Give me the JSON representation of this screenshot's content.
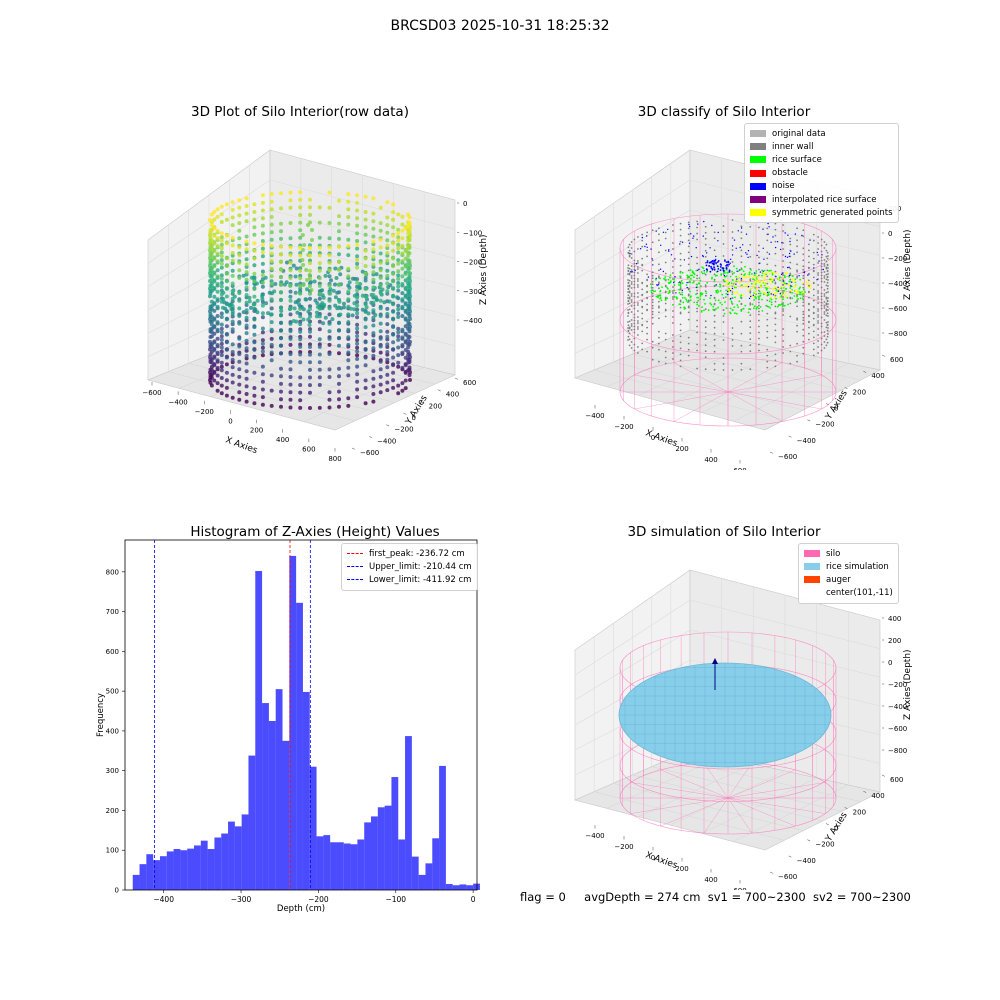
{
  "suptitle": "BRCSD03 2025-10-31 18:25:32",
  "panels": {
    "raw": {
      "title": "3D Plot of Silo Interior(row data)",
      "xlabel": "X Axies",
      "ylabel": "Y Axies",
      "zlabel": "Z Axies (Depth)",
      "xticks": [
        "−600",
        "−400",
        "−200",
        "0",
        "200",
        "400",
        "600",
        "800"
      ],
      "yticks": [
        "−600",
        "−400",
        "−200",
        "0",
        "200",
        "400",
        "600"
      ],
      "zticks": [
        "0",
        "−100",
        "−200",
        "−300",
        "−400"
      ]
    },
    "classify": {
      "title": "3D classify of Silo Interior",
      "xlabel": "X Axies",
      "ylabel": "Y Axies",
      "zlabel": "Z Axies (Depth)",
      "xticks": [
        "−400",
        "−200",
        "0",
        "200",
        "400",
        "600"
      ],
      "yticks": [
        "−600",
        "−400",
        "−200",
        "0",
        "200",
        "400",
        "600"
      ],
      "zticks": [
        "200",
        "0",
        "−200",
        "−400",
        "−600",
        "−800"
      ],
      "legend": [
        {
          "label": "original data",
          "color": "#b3b3b3"
        },
        {
          "label": "inner wall",
          "color": "#808080"
        },
        {
          "label": "rice surface",
          "color": "#00ff00"
        },
        {
          "label": "obstacle",
          "color": "#ff0000"
        },
        {
          "label": "noise",
          "color": "#0000ff"
        },
        {
          "label": "interpolated rice surface",
          "color": "#800080"
        },
        {
          "label": "symmetric generated points",
          "color": "#ffff00"
        }
      ]
    },
    "simulation": {
      "title": "3D simulation of Silo Interior",
      "xlabel": "X Axies",
      "ylabel": "Y Axies",
      "zlabel": "Z Axies (Depth)",
      "xticks": [
        "−400",
        "−200",
        "0",
        "200",
        "400",
        "600"
      ],
      "yticks": [
        "−600",
        "−400",
        "−200",
        "0",
        "200",
        "400",
        "600"
      ],
      "zticks": [
        "400",
        "200",
        "0",
        "−200",
        "−400",
        "−600",
        "−800"
      ],
      "legend": [
        {
          "label": "silo",
          "color": "#ff69b4"
        },
        {
          "label": "rice simulation",
          "color": "#87ceeb"
        },
        {
          "label": "auger",
          "color": "#ff4500"
        },
        {
          "label": "center(101,-11)",
          "color": ""
        }
      ]
    }
  },
  "footer": {
    "flag": "flag = 0",
    "avg": "avgDepth = 274 cm",
    "sv1": "sv1 = 700~2300",
    "sv2": "sv2 = 700~2300"
  },
  "chart_data": {
    "type": "bar",
    "title": "Histogram of Z-Axies (Height) Values",
    "xlabel": "Depth (cm)",
    "ylabel": "Frequency",
    "xlim": [
      -450,
      5
    ],
    "ylim": [
      0,
      880
    ],
    "xticks": [
      -400,
      -300,
      -200,
      -100,
      0
    ],
    "yticks": [
      0,
      100,
      200,
      300,
      400,
      500,
      600,
      700,
      800
    ],
    "bar_color": "#0000ff",
    "bin_start": -440,
    "bin_width": 8.8,
    "values": [
      38,
      65,
      90,
      75,
      85,
      97,
      103,
      100,
      104,
      112,
      124,
      103,
      132,
      142,
      172,
      160,
      190,
      338,
      802,
      470,
      425,
      505,
      375,
      840,
      722,
      498,
      310,
      135,
      138,
      120,
      120,
      117,
      115,
      127,
      170,
      185,
      208,
      212,
      284,
      127,
      387,
      84,
      38,
      67,
      130,
      312,
      15,
      12,
      14,
      12,
      16
    ],
    "vlines": [
      {
        "label": "first_peak: -236.72 cm",
        "x": -236.72,
        "color": "#ff0000"
      },
      {
        "label": "Upper_limit: -210.44 cm",
        "x": -210.44,
        "color": "#0000ff"
      },
      {
        "label": "Lower_limit: -411.92 cm",
        "x": -411.92,
        "color": "#0000ff"
      }
    ],
    "legend_position": "upper right",
    "grid": false
  }
}
